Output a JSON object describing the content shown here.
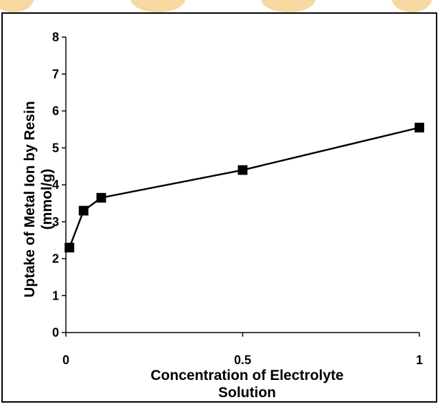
{
  "chart_data": {
    "type": "line",
    "title": "",
    "xlabel_lines": [
      "Concentration of Electrolyte",
      "Solution"
    ],
    "ylabel_lines": [
      "Uptake of Metal Ion by Resin",
      "(mmol/g)"
    ],
    "x": [
      0.01,
      0.05,
      0.1,
      0.5,
      1.0
    ],
    "series": [
      {
        "values": [
          2.3,
          3.3,
          3.65,
          4.4,
          5.55
        ]
      }
    ],
    "xlim": [
      0,
      1
    ],
    "ylim": [
      0,
      8
    ],
    "x_ticks": [
      0,
      0.5,
      1
    ],
    "x_tick_labels": [
      "0",
      "0.5",
      "1"
    ],
    "y_ticks": [
      0,
      1,
      2,
      3,
      4,
      5,
      6,
      7,
      8
    ],
    "y_tick_labels": [
      "0",
      "1",
      "2",
      "3",
      "4",
      "5",
      "6",
      "7",
      "8"
    ],
    "marker": "square",
    "grid": false,
    "legend": false,
    "colors": {
      "line": "#000000",
      "marker": "#000000",
      "watermark": "#f6d9a0"
    }
  }
}
